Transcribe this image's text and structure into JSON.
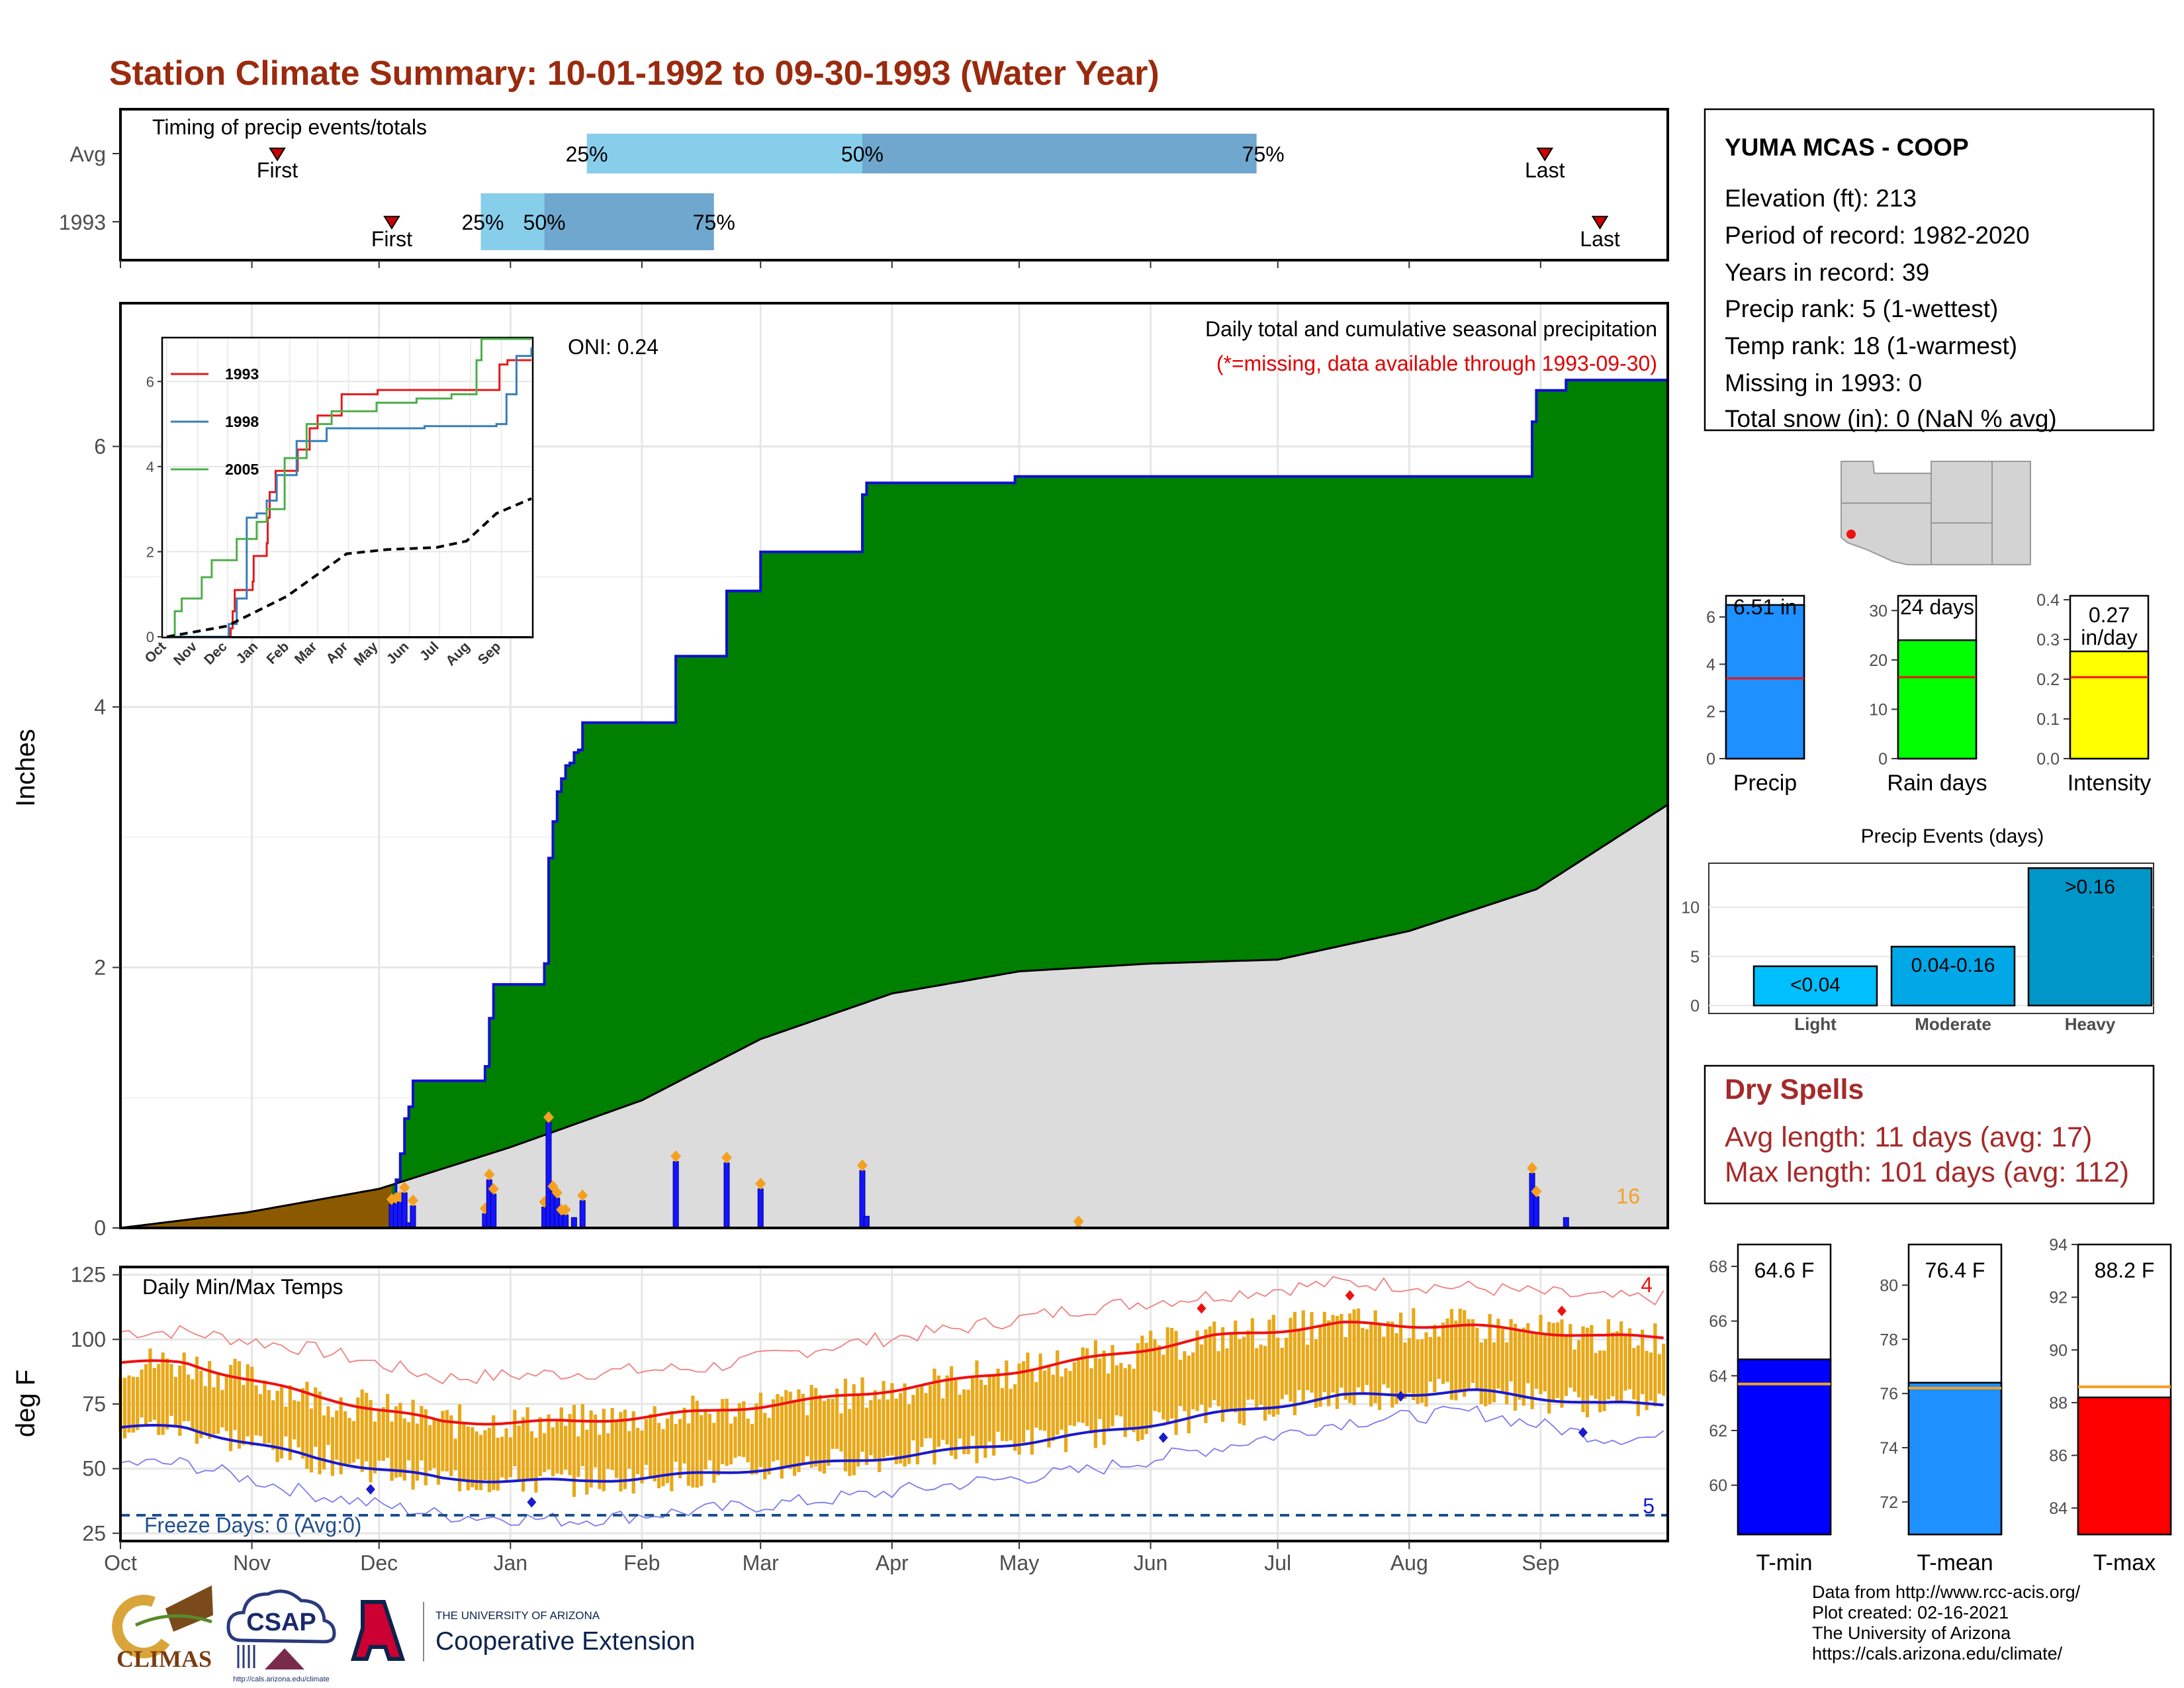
{
  "title": "Station Climate Summary: 10-01-1992 to 09-30-1993 (Water Year)",
  "colors": {
    "title": "#9B2A0E",
    "green": "#008000",
    "blue_line": "#1010d0",
    "normal_fill": "#dcdcdc",
    "brown": "#8B5A00",
    "missing_red": "#e00000",
    "orange": "#f4a020",
    "gold": "#e8a818",
    "tmax_line": "#ee1111",
    "tmin_line": "#1a1acc",
    "freeze": "#1f4e8c",
    "dry_spell": "#a52a2a"
  },
  "timing": {
    "title": "Timing of precip events/totals",
    "rows": [
      {
        "label": "Avg",
        "first": "First",
        "p25": "25%",
        "p50": "50%",
        "p75": "75%",
        "last": "Last"
      },
      {
        "label": "1993",
        "first": "First",
        "p25": "25%",
        "p50": "50%",
        "p75": "75%",
        "last": "Last"
      }
    ]
  },
  "station": {
    "name": "YUMA MCAS - COOP",
    "lines": [
      "Elevation (ft): 213",
      "Period of record: 1982-2020",
      "Years in record: 39",
      "Precip rank: 5 (1-wettest)",
      "Temp rank: 18 (1-warmest)",
      "Missing in 1993: 0",
      "Total snow (in): 0 (NaN % avg)"
    ]
  },
  "precip_panel": {
    "ylabel": "Inches",
    "oni": "ONI: 0.24",
    "subtitle": "Daily total and cumulative seasonal precipitation",
    "missing_note": "(*=missing, data available through 1993-09-30)",
    "count_label": "16",
    "yticks": [
      "0",
      "2",
      "4",
      "6"
    ]
  },
  "inset": {
    "legend": [
      "1993",
      "1998",
      "2005"
    ],
    "legend_colors": [
      "#e41a1c",
      "#377eb8",
      "#4daf4a"
    ],
    "yticks": [
      "0",
      "2",
      "4",
      "6"
    ],
    "months": [
      "Oct",
      "Nov",
      "Dec",
      "Jan",
      "Feb",
      "Mar",
      "Apr",
      "May",
      "Jun",
      "Jul",
      "Aug",
      "Sep"
    ]
  },
  "temp_panel": {
    "ylabel": "deg F",
    "title": "Daily Min/Max Temps",
    "freeze": "Freeze Days: 0 (Avg:0)",
    "count_max": "4",
    "count_min": "5",
    "yticks": [
      "25",
      "50",
      "75",
      "100",
      "125"
    ]
  },
  "months": [
    "Oct",
    "Nov",
    "Dec",
    "Jan",
    "Feb",
    "Mar",
    "Apr",
    "May",
    "Jun",
    "Jul",
    "Aug",
    "Sep"
  ],
  "small_bars": [
    {
      "label": "Precip",
      "value_text": "6.51 in",
      "color": "#1e90ff",
      "yticks": [
        "0",
        "2",
        "4",
        "6"
      ]
    },
    {
      "label": "Rain days",
      "value_text": "24 days",
      "color": "#00ff00",
      "yticks": [
        "0",
        "10",
        "20",
        "30"
      ]
    },
    {
      "label": "Intensity",
      "value_text": "0.27 in/day",
      "color": "#ffff00",
      "yticks": [
        "0.0",
        "0.1",
        "0.2",
        "0.3",
        "0.4"
      ]
    }
  ],
  "events": {
    "title": "Precip Events (days)",
    "categories": [
      "Light",
      "Moderate",
      "Heavy"
    ],
    "labels": [
      "<0.04",
      "0.04-0.16",
      ">0.16"
    ],
    "yticks": [
      "0",
      "5",
      "10"
    ]
  },
  "dry_spells": {
    "title": "Dry Spells",
    "avg": "Avg length: 11 days (avg: 17)",
    "max": "Max length: 101 days (avg: 112)"
  },
  "temp_bars": [
    {
      "label": "T-min",
      "value_text": "64.6 F",
      "color": "#0000ff",
      "yticks": [
        "60",
        "62",
        "64",
        "66",
        "68"
      ]
    },
    {
      "label": "T-mean",
      "value_text": "76.4 F",
      "color": "#1e90ff",
      "yticks": [
        "72",
        "74",
        "76",
        "78",
        "80"
      ]
    },
    {
      "label": "T-max",
      "value_text": "88.2 F",
      "color": "#ff0000",
      "yticks": [
        "84",
        "86",
        "88",
        "90",
        "92",
        "94"
      ]
    }
  ],
  "logos": {
    "climas": "CLIMAS",
    "csap": "CSAP",
    "csap_url": "http://cals.arizona.edu/climate",
    "ua_small": "THE UNIVERSITY OF ARIZONA",
    "ua_big": "Cooperative Extension"
  },
  "credits": [
    "Data from http://www.rcc-acis.org/",
    "Plot created: 02-16-2021",
    "The University of Arizona",
    "https://cals.arizona.edu/climate/"
  ],
  "chart_data": [
    {
      "type": "bar",
      "name": "timing",
      "x_axis": "day of water year (Oct 1 = 0)",
      "rows": [
        {
          "label": "Avg",
          "first": 37,
          "p25": 110,
          "p50": 175,
          "p75": 268,
          "last": 336
        },
        {
          "label": "1993",
          "first": 64,
          "p25": 85,
          "p50": 100,
          "p75": 140,
          "last": 349
        }
      ]
    },
    {
      "type": "area",
      "name": "cumulative_precip",
      "ylabel": "Inches",
      "ylim": [
        0,
        7.1
      ],
      "cumulative_1993_steps": [
        [
          0,
          0
        ],
        [
          64,
          0.18
        ],
        [
          65,
          0.37
        ],
        [
          66,
          0.57
        ],
        [
          67,
          0.84
        ],
        [
          68,
          0.93
        ],
        [
          69,
          1.13
        ],
        [
          85,
          1.13
        ],
        [
          86,
          1.24
        ],
        [
          87,
          1.61
        ],
        [
          88,
          1.87
        ],
        [
          99,
          1.87
        ],
        [
          100,
          2.03
        ],
        [
          101,
          2.84
        ],
        [
          102,
          3.12
        ],
        [
          103,
          3.35
        ],
        [
          104,
          3.45
        ],
        [
          105,
          3.55
        ],
        [
          106,
          3.57
        ],
        [
          107,
          3.65
        ],
        [
          108,
          3.67
        ],
        [
          109,
          3.88
        ],
        [
          130,
          3.88
        ],
        [
          131,
          4.39
        ],
        [
          142,
          4.39
        ],
        [
          143,
          4.89
        ],
        [
          150,
          4.89
        ],
        [
          151,
          5.19
        ],
        [
          174,
          5.19
        ],
        [
          175,
          5.63
        ],
        [
          176,
          5.72
        ],
        [
          210,
          5.72
        ],
        [
          211,
          5.77
        ],
        [
          332,
          5.77
        ],
        [
          333,
          6.19
        ],
        [
          334,
          6.43
        ],
        [
          340,
          6.43
        ],
        [
          341,
          6.51
        ],
        [
          365,
          6.51
        ]
      ],
      "normal_cumulative": [
        [
          0,
          0
        ],
        [
          30,
          0.12
        ],
        [
          61,
          0.3
        ],
        [
          92,
          0.62
        ],
        [
          123,
          0.98
        ],
        [
          151,
          1.45
        ],
        [
          182,
          1.8
        ],
        [
          212,
          1.97
        ],
        [
          243,
          2.03
        ],
        [
          273,
          2.06
        ],
        [
          304,
          2.28
        ],
        [
          334,
          2.6
        ],
        [
          365,
          3.25
        ]
      ],
      "daily_precip_1993": [
        [
          64,
          0.18
        ],
        [
          65,
          0.19
        ],
        [
          66,
          0.2
        ],
        [
          67,
          0.27
        ],
        [
          68,
          0.04
        ],
        [
          69,
          0.17
        ],
        [
          86,
          0.11
        ],
        [
          87,
          0.37
        ],
        [
          88,
          0.26
        ],
        [
          100,
          0.16
        ],
        [
          101,
          0.81
        ],
        [
          102,
          0.28
        ],
        [
          103,
          0.23
        ],
        [
          104,
          0.1
        ],
        [
          105,
          0.1
        ],
        [
          107,
          0.08
        ],
        [
          109,
          0.21
        ],
        [
          131,
          0.51
        ],
        [
          143,
          0.5
        ],
        [
          151,
          0.3
        ],
        [
          175,
          0.44
        ],
        [
          176,
          0.09
        ],
        [
          226,
          0.01
        ],
        [
          333,
          0.42
        ],
        [
          334,
          0.24
        ],
        [
          341,
          0.08
        ]
      ]
    },
    {
      "type": "line",
      "name": "inset_cumulative",
      "series": [
        {
          "name": "1993",
          "points": [
            [
              0,
              0
            ],
            [
              64,
              0.2
            ],
            [
              66,
              0.6
            ],
            [
              68,
              1.1
            ],
            [
              86,
              1.3
            ],
            [
              87,
              1.9
            ],
            [
              100,
              2.2
            ],
            [
              101,
              2.8
            ],
            [
              103,
              3.4
            ],
            [
              109,
              3.9
            ],
            [
              131,
              4.4
            ],
            [
              143,
              4.9
            ],
            [
              151,
              5.2
            ],
            [
              175,
              5.7
            ],
            [
              211,
              5.8
            ],
            [
              332,
              5.8
            ],
            [
              333,
              6.4
            ],
            [
              341,
              6.5
            ],
            [
              365,
              6.5
            ]
          ]
        },
        {
          "name": "1998",
          "points": [
            [
              0,
              0
            ],
            [
              62,
              0.3
            ],
            [
              70,
              0.9
            ],
            [
              80,
              2.8
            ],
            [
              90,
              2.9
            ],
            [
              100,
              3.2
            ],
            [
              110,
              3.8
            ],
            [
              130,
              4.6
            ],
            [
              160,
              4.9
            ],
            [
              250,
              4.9
            ],
            [
              258,
              4.95
            ],
            [
              330,
              5.0
            ],
            [
              340,
              5.7
            ],
            [
              350,
              6.6
            ],
            [
              365,
              6.8
            ]
          ]
        },
        {
          "name": "2005",
          "points": [
            [
              0,
              0
            ],
            [
              8,
              0.6
            ],
            [
              15,
              0.9
            ],
            [
              35,
              1.4
            ],
            [
              45,
              1.8
            ],
            [
              70,
              2.3
            ],
            [
              90,
              2.7
            ],
            [
              100,
              3.0
            ],
            [
              118,
              4.2
            ],
            [
              140,
              5.0
            ],
            [
              165,
              5.3
            ],
            [
              210,
              5.5
            ],
            [
              250,
              5.6
            ],
            [
              285,
              5.7
            ],
            [
              310,
              6.5
            ],
            [
              315,
              7.0
            ],
            [
              365,
              7.0
            ]
          ]
        },
        {
          "name": "",
          "points": [
            [
              0,
              0
            ],
            [
              60,
              0.25
            ],
            [
              90,
              0.6
            ],
            [
              120,
              0.95
            ],
            [
              150,
              1.45
            ],
            [
              180,
              1.95
            ],
            [
              220,
              2.05
            ],
            [
              270,
              2.1
            ],
            [
              300,
              2.25
            ],
            [
              330,
              2.9
            ],
            [
              365,
              3.25
            ]
          ]
        }
      ],
      "ylim": [
        0,
        7
      ]
    },
    {
      "type": "line",
      "name": "daily_temps",
      "ylabel": "deg F",
      "ylim": [
        22,
        128
      ],
      "tmax_normal_by_month": [
        91,
        78,
        68,
        68,
        72,
        77,
        84,
        92,
        101,
        106,
        105,
        101
      ],
      "tmin_normal_by_month": [
        66,
        54,
        46,
        45,
        48,
        52,
        57,
        63,
        71,
        78,
        80,
        75
      ],
      "record_high_by_month": [
        103,
        96,
        85,
        87,
        89,
        97,
        104,
        112,
        117,
        122,
        120,
        116
      ],
      "record_low_by_month": [
        52,
        40,
        32,
        30,
        34,
        38,
        44,
        49,
        58,
        68,
        72,
        62
      ],
      "freeze_threshold": 32
    },
    {
      "type": "bar",
      "name": "season_totals",
      "categories": [
        "Precip",
        "Rain days",
        "Intensity"
      ],
      "values": [
        6.51,
        24,
        0.27
      ],
      "averages": [
        3.4,
        16.5,
        0.205
      ],
      "ylims": [
        [
          0,
          6.9
        ],
        [
          0,
          33
        ],
        [
          0,
          0.41
        ]
      ]
    },
    {
      "type": "bar",
      "name": "precip_events",
      "categories": [
        "Light",
        "Moderate",
        "Heavy"
      ],
      "values": [
        4,
        6,
        14
      ],
      "ylim": [
        0,
        14.5
      ]
    },
    {
      "type": "bar",
      "name": "temperature_means",
      "categories": [
        "T-min",
        "T-mean",
        "T-max"
      ],
      "values": [
        64.6,
        76.4,
        88.2
      ],
      "averages": [
        63.7,
        76.2,
        88.6
      ],
      "ylims": [
        [
          58.2,
          68.8
        ],
        [
          70.8,
          81.5
        ],
        [
          83.0,
          94.0
        ]
      ]
    }
  ]
}
